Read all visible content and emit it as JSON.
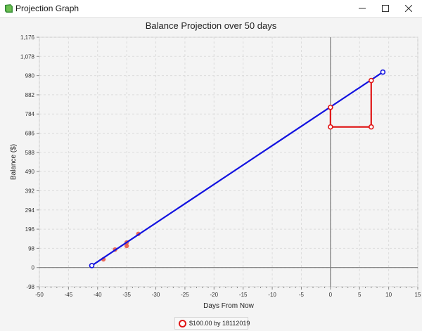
{
  "window": {
    "title": "Projection Graph",
    "icon": "app-icon",
    "controls": [
      "minimize-icon",
      "maximize-icon",
      "close-icon"
    ]
  },
  "legend": {
    "label": "$100.00 by 18112019",
    "swatch_color": "#e01616"
  },
  "chart_data": {
    "type": "scatter",
    "title": "Balance Projection over 50 days",
    "xlabel": "Days From Now",
    "ylabel": "Balance ($)",
    "xlim": [
      -50,
      15
    ],
    "ylim": [
      -98,
      1176
    ],
    "x_ticks": [
      -50,
      -45,
      -40,
      -35,
      -30,
      -25,
      -20,
      -15,
      -10,
      -5,
      0,
      5,
      10,
      15
    ],
    "x_tick_labels": [
      "-50",
      "-45",
      "-40",
      "-35",
      "-30",
      "-25",
      "-20",
      "-15",
      "-10",
      "-5",
      "0",
      "5",
      "10",
      "15"
    ],
    "y_ticks": [
      -98,
      0,
      98,
      196,
      294,
      392,
      490,
      588,
      686,
      784,
      882,
      980,
      1078,
      1176
    ],
    "y_tick_labels": [
      "-98",
      "0",
      "98",
      "196",
      "294",
      "392",
      "490",
      "588",
      "686",
      "784",
      "882",
      "980",
      "1,078",
      "1,176"
    ],
    "grid": true,
    "legend_position": "bottom-center",
    "series": [
      {
        "kind": "scatter",
        "color": "#e8513e",
        "points": [
          [
            -41,
            12
          ],
          [
            -39,
            42
          ],
          [
            -37,
            92
          ],
          [
            -35,
            110
          ],
          [
            -35,
            128
          ],
          [
            -33,
            172
          ]
        ]
      },
      {
        "kind": "line",
        "color": "#1212e0",
        "points": [
          [
            -41,
            10
          ],
          [
            9,
            998
          ]
        ]
      },
      {
        "name": "$100.00 by 18112019",
        "kind": "line",
        "color": "#e01616",
        "points": [
          [
            0,
            818
          ],
          [
            0,
            718
          ],
          [
            7,
            718
          ],
          [
            7,
            955
          ]
        ]
      }
    ]
  }
}
